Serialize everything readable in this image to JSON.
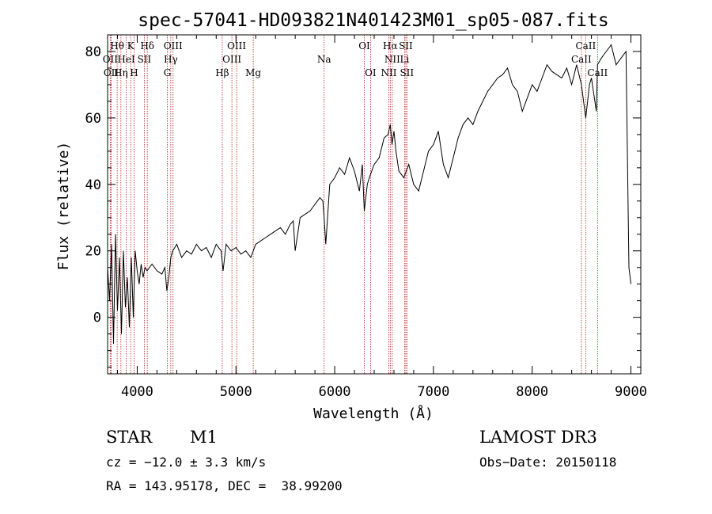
{
  "chart_data": {
    "type": "line",
    "title": "spec-57041-HD093821N401423M01_sp05-087.fits",
    "xlabel": "Wavelength (Å)",
    "ylabel": "Flux (relative)",
    "xlim": [
      3700,
      9100
    ],
    "ylim": [
      -17,
      85
    ],
    "xticks": [
      4000,
      5000,
      6000,
      7000,
      8000,
      9000
    ],
    "yticks": [
      0,
      20,
      40,
      60,
      80
    ],
    "grid": false,
    "line_color": "#000000",
    "marker_color": "#b22222",
    "series": [
      {
        "x": [
          3700,
          3720,
          3740,
          3760,
          3780,
          3800,
          3820,
          3840,
          3860,
          3880,
          3900,
          3920,
          3940,
          3960,
          3980,
          4000,
          4020,
          4040,
          4060,
          4080,
          4100,
          4150,
          4200,
          4250,
          4280,
          4300,
          4320,
          4340,
          4360,
          4400,
          4450,
          4500,
          4550,
          4600,
          4650,
          4700,
          4750,
          4800,
          4850,
          4870,
          4900,
          4950,
          5000,
          5050,
          5100,
          5150,
          5200,
          5250,
          5300,
          5350,
          5400,
          5450,
          5500,
          5550,
          5580,
          5600,
          5650,
          5700,
          5750,
          5800,
          5850,
          5880,
          5893,
          5910,
          5950,
          6000,
          6050,
          6100,
          6150,
          6200,
          6250,
          6280,
          6300,
          6330,
          6350,
          6400,
          6450,
          6500,
          6540,
          6563,
          6580,
          6600,
          6620,
          6650,
          6700,
          6750,
          6800,
          6850,
          6900,
          6950,
          7000,
          7050,
          7100,
          7150,
          7200,
          7250,
          7300,
          7350,
          7400,
          7450,
          7500,
          7550,
          7600,
          7650,
          7700,
          7750,
          7800,
          7850,
          7900,
          7950,
          8000,
          8050,
          8100,
          8150,
          8200,
          8250,
          8300,
          8350,
          8400,
          8450,
          8498,
          8542,
          8580,
          8600,
          8650,
          8662,
          8700,
          8750,
          8800,
          8850,
          8900,
          8950,
          8980,
          9000
        ],
        "y": [
          15,
          5,
          22,
          -8,
          25,
          2,
          18,
          -5,
          20,
          3,
          12,
          -3,
          18,
          0,
          20,
          14,
          10,
          16,
          12,
          15,
          14,
          16,
          14,
          13,
          15,
          8,
          12,
          18,
          20,
          22,
          18,
          20,
          19,
          22,
          20,
          21,
          18,
          22,
          20,
          14,
          22,
          20,
          21,
          19,
          20,
          18,
          22,
          23,
          24,
          25,
          26,
          27,
          25,
          28,
          29,
          20,
          30,
          31,
          32,
          34,
          36,
          35,
          30,
          22,
          40,
          42,
          45,
          43,
          48,
          44,
          38,
          46,
          32,
          40,
          42,
          46,
          48,
          54,
          55,
          58,
          52,
          56,
          50,
          44,
          42,
          46,
          40,
          38,
          44,
          50,
          52,
          56,
          46,
          42,
          48,
          54,
          58,
          60,
          58,
          62,
          65,
          68,
          70,
          72,
          73,
          75,
          70,
          68,
          62,
          66,
          70,
          68,
          72,
          76,
          74,
          73,
          72,
          75,
          70,
          76,
          70,
          60,
          70,
          72,
          62,
          76,
          78,
          80,
          82,
          76,
          78,
          80,
          15,
          10
        ]
      }
    ],
    "annotations": [
      {
        "label": "Hθ",
        "x": 3797,
        "row": 0
      },
      {
        "label": "K",
        "x": 3934,
        "row": 0
      },
      {
        "label": "Hδ",
        "x": 4102,
        "row": 0
      },
      {
        "label": "OIII",
        "x": 4363,
        "row": 0
      },
      {
        "label": "OIII",
        "x": 5007,
        "row": 0
      },
      {
        "label": "OI",
        "x": 6300,
        "row": 0
      },
      {
        "label": "Hα",
        "x": 6563,
        "row": 0
      },
      {
        "label": "SII",
        "x": 6720,
        "row": 0
      },
      {
        "label": "CaII",
        "x": 8542,
        "row": 0
      },
      {
        "label": "OII",
        "x": 3727,
        "row": 1
      },
      {
        "label": "HeI",
        "x": 3889,
        "row": 1
      },
      {
        "label": "SII",
        "x": 4072,
        "row": 1
      },
      {
        "label": "Hγ",
        "x": 4340,
        "row": 1
      },
      {
        "label": "OIII",
        "x": 4959,
        "row": 1
      },
      {
        "label": "Na",
        "x": 5893,
        "row": 1
      },
      {
        "label": "NII",
        "x": 6583,
        "row": 1
      },
      {
        "label": "Li",
        "x": 6708,
        "row": 1
      },
      {
        "label": "CaII",
        "x": 8498,
        "row": 1
      },
      {
        "label": "OII",
        "x": 3736,
        "row": 2
      },
      {
        "label": "Hη",
        "x": 3835,
        "row": 2
      },
      {
        "label": "H",
        "x": 3968,
        "row": 2
      },
      {
        "label": "G",
        "x": 4305,
        "row": 2
      },
      {
        "label": "Hβ",
        "x": 4861,
        "row": 2
      },
      {
        "label": "Mg",
        "x": 5175,
        "row": 2
      },
      {
        "label": "OI",
        "x": 6363,
        "row": 2
      },
      {
        "label": "NII",
        "x": 6548,
        "row": 2
      },
      {
        "label": "SII",
        "x": 6731,
        "row": 2
      },
      {
        "label": "CaII",
        "x": 8662,
        "row": 2
      }
    ],
    "marker_lines": [
      3727,
      3736,
      3797,
      3835,
      3889,
      3934,
      3968,
      4072,
      4102,
      4305,
      4340,
      4363,
      4861,
      4959,
      5007,
      5175,
      5893,
      6300,
      6363,
      6548,
      6563,
      6583,
      6708,
      6720,
      6731,
      8498,
      8542,
      8662
    ]
  },
  "info": {
    "class_label": "STAR",
    "subclass_label": "M1",
    "survey": "LAMOST DR3",
    "cz": "cz = −12.0 ± 3.3 km/s",
    "obs_date": "Obs−Date: 20150118",
    "coords": "RA = 143.95178, DEC =  38.99200"
  }
}
